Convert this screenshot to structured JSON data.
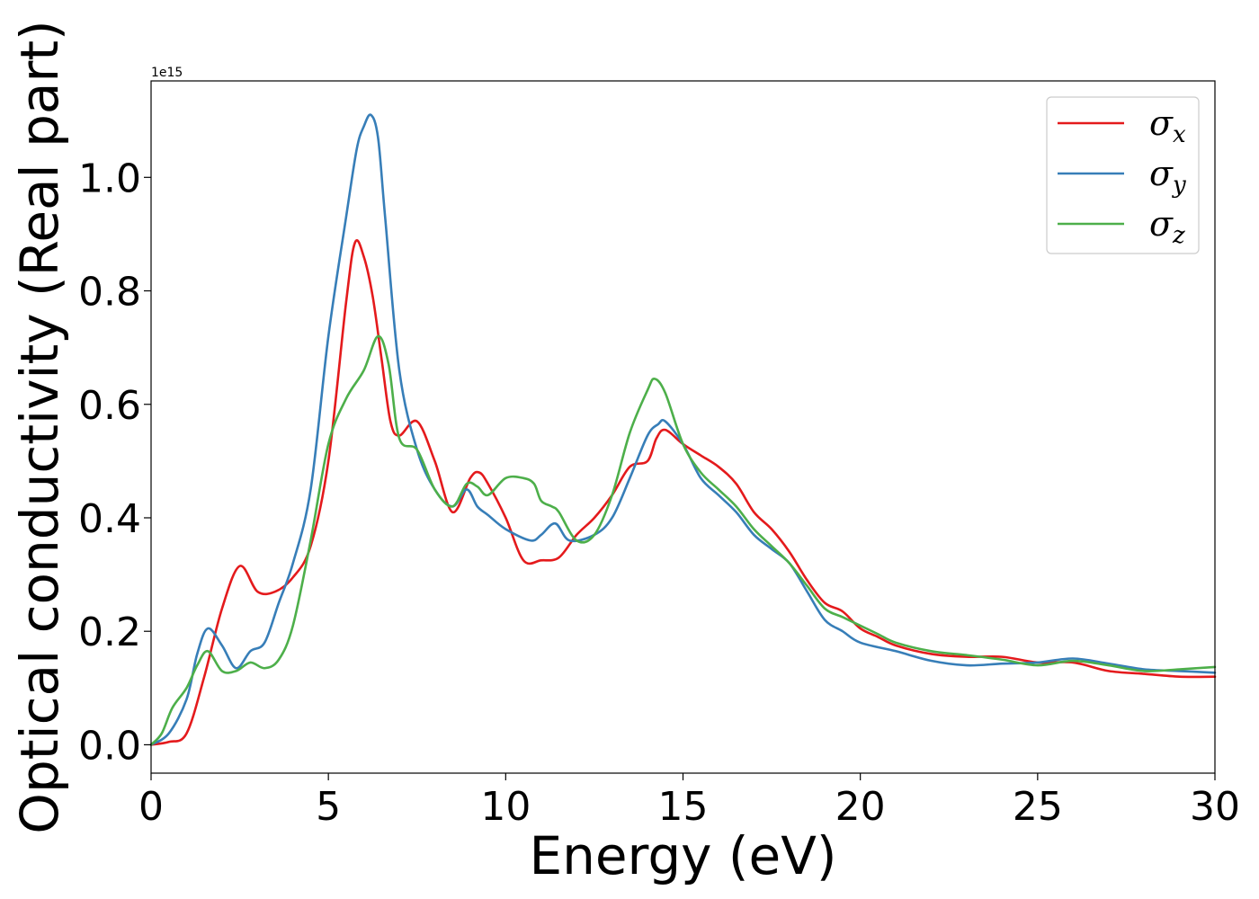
{
  "chart_data": {
    "type": "line",
    "title": "",
    "xlabel": "Energy (eV)",
    "ylabel": "Optical conductivity (Real part)",
    "y_offset_label": "1e15",
    "xlim": [
      0,
      30
    ],
    "ylim": [
      -0.05,
      1.17
    ],
    "xticks": [
      0,
      5,
      10,
      15,
      20,
      25,
      30
    ],
    "xtick_labels": [
      "0",
      "5",
      "10",
      "15",
      "20",
      "25",
      "30"
    ],
    "yticks": [
      0.0,
      0.2,
      0.4,
      0.6,
      0.8,
      1.0
    ],
    "ytick_labels": [
      "0.0",
      "0.2",
      "0.4",
      "0.6",
      "0.8",
      "1.0"
    ],
    "grid": false,
    "legend_position": "top-right",
    "series": [
      {
        "name": "σx",
        "symbol": "σ",
        "subscript": "x",
        "color": "#e41a1c",
        "x": [
          0,
          0.5,
          1.0,
          1.5,
          2.0,
          2.5,
          3.0,
          3.5,
          4.0,
          4.5,
          5.0,
          5.5,
          5.75,
          6.0,
          6.25,
          6.5,
          6.75,
          7.0,
          7.5,
          8.0,
          8.5,
          9.0,
          9.25,
          9.5,
          10.0,
          10.5,
          11.0,
          11.5,
          12.0,
          12.5,
          13.0,
          13.5,
          14.0,
          14.25,
          14.5,
          15.0,
          15.5,
          16.0,
          16.5,
          17.0,
          17.5,
          18.0,
          18.5,
          19.0,
          19.5,
          20.0,
          20.5,
          21.0,
          22.0,
          23.0,
          24.0,
          25.0,
          26.0,
          27.0,
          28.0,
          29.0,
          30.0
        ],
        "y": [
          0.0,
          0.005,
          0.02,
          0.12,
          0.24,
          0.315,
          0.27,
          0.27,
          0.295,
          0.35,
          0.5,
          0.78,
          0.885,
          0.86,
          0.79,
          0.68,
          0.57,
          0.545,
          0.57,
          0.5,
          0.41,
          0.47,
          0.48,
          0.46,
          0.4,
          0.325,
          0.325,
          0.33,
          0.37,
          0.4,
          0.44,
          0.49,
          0.5,
          0.54,
          0.555,
          0.53,
          0.51,
          0.49,
          0.46,
          0.41,
          0.38,
          0.34,
          0.29,
          0.25,
          0.235,
          0.205,
          0.19,
          0.175,
          0.16,
          0.155,
          0.155,
          0.145,
          0.145,
          0.13,
          0.125,
          0.12,
          0.12
        ]
      },
      {
        "name": "σy",
        "symbol": "σ",
        "subscript": "y",
        "color": "#377eb8",
        "x": [
          0,
          0.5,
          1.0,
          1.3,
          1.6,
          2.0,
          2.4,
          2.8,
          3.2,
          3.6,
          4.0,
          4.5,
          5.0,
          5.5,
          5.8,
          6.0,
          6.2,
          6.4,
          6.6,
          7.0,
          7.5,
          8.0,
          8.5,
          8.9,
          9.2,
          9.5,
          10.0,
          10.7,
          11.0,
          11.4,
          11.8,
          12.5,
          13.0,
          13.5,
          14.0,
          14.3,
          14.5,
          15.0,
          15.5,
          16.0,
          16.5,
          17.0,
          17.5,
          18.0,
          18.5,
          19.0,
          19.5,
          20.0,
          21.0,
          22.0,
          23.0,
          24.0,
          25.0,
          26.0,
          27.0,
          28.0,
          29.0,
          30.0
        ],
        "y": [
          0.0,
          0.02,
          0.08,
          0.16,
          0.205,
          0.175,
          0.135,
          0.165,
          0.18,
          0.25,
          0.32,
          0.45,
          0.72,
          0.93,
          1.05,
          1.09,
          1.11,
          1.07,
          0.93,
          0.66,
          0.52,
          0.45,
          0.42,
          0.45,
          0.42,
          0.405,
          0.38,
          0.36,
          0.37,
          0.39,
          0.36,
          0.37,
          0.4,
          0.47,
          0.545,
          0.565,
          0.57,
          0.53,
          0.47,
          0.44,
          0.41,
          0.37,
          0.345,
          0.32,
          0.27,
          0.22,
          0.2,
          0.18,
          0.165,
          0.148,
          0.14,
          0.143,
          0.145,
          0.152,
          0.143,
          0.133,
          0.13,
          0.127
        ]
      },
      {
        "name": "σz",
        "symbol": "σ",
        "subscript": "z",
        "color": "#4daf4a",
        "x": [
          0,
          0.3,
          0.6,
          1.0,
          1.3,
          1.6,
          2.0,
          2.4,
          2.8,
          3.2,
          3.6,
          4.0,
          4.5,
          5.0,
          5.5,
          6.0,
          6.4,
          6.7,
          7.0,
          7.5,
          8.0,
          8.5,
          8.9,
          9.2,
          9.5,
          10.0,
          10.5,
          10.8,
          11.0,
          11.3,
          11.5,
          12.0,
          12.5,
          13.0,
          13.5,
          14.0,
          14.2,
          14.5,
          15.0,
          15.5,
          16.0,
          16.5,
          17.0,
          17.5,
          18.0,
          18.5,
          19.0,
          19.5,
          20.0,
          20.5,
          21.0,
          22.0,
          23.0,
          24.0,
          25.0,
          26.0,
          27.0,
          28.0,
          29.0,
          30.0
        ],
        "y": [
          0.0,
          0.02,
          0.065,
          0.1,
          0.14,
          0.165,
          0.13,
          0.13,
          0.145,
          0.135,
          0.15,
          0.21,
          0.36,
          0.53,
          0.61,
          0.66,
          0.72,
          0.67,
          0.54,
          0.52,
          0.45,
          0.42,
          0.46,
          0.455,
          0.44,
          0.47,
          0.47,
          0.46,
          0.43,
          0.42,
          0.41,
          0.36,
          0.37,
          0.44,
          0.55,
          0.625,
          0.645,
          0.62,
          0.53,
          0.48,
          0.45,
          0.42,
          0.38,
          0.35,
          0.32,
          0.28,
          0.24,
          0.225,
          0.21,
          0.195,
          0.18,
          0.165,
          0.158,
          0.15,
          0.14,
          0.148,
          0.14,
          0.13,
          0.133,
          0.137
        ]
      }
    ]
  }
}
